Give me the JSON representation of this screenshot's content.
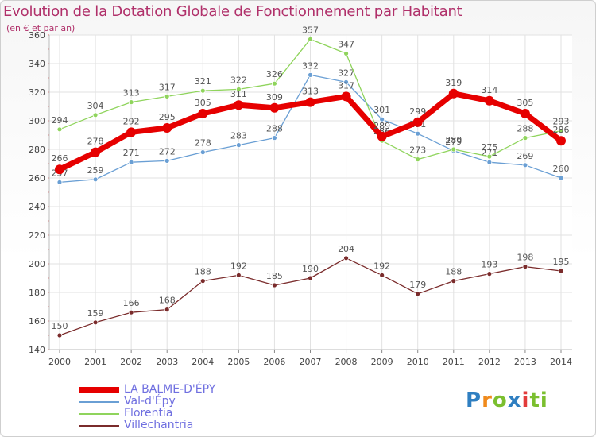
{
  "header": {
    "title": "Evolution de la Dotation Globale de Fonctionnement par Habitant",
    "subtitle": "(en € et par an)"
  },
  "logo": {
    "text": "Proxiti",
    "letters": [
      "P",
      "r",
      "o",
      "x",
      "i",
      "ti"
    ]
  },
  "chart_data": {
    "type": "line",
    "x": [
      "2000",
      "2001",
      "2002",
      "2003",
      "2004",
      "2005",
      "2006",
      "2007",
      "2008",
      "2009",
      "2010",
      "2011",
      "2012",
      "2013",
      "2014"
    ],
    "ylim": [
      140,
      360
    ],
    "yticks": [
      140,
      160,
      180,
      200,
      220,
      240,
      260,
      280,
      300,
      320,
      340,
      360
    ],
    "grid": true,
    "legend_placement": "bottom-left",
    "series": [
      {
        "name": "Val-d'Épy",
        "color": "#6a9fd4",
        "values": [
          257,
          259,
          271,
          272,
          278,
          283,
          288,
          332,
          327,
          301,
          291,
          279,
          271,
          269,
          260
        ]
      },
      {
        "name": "Florentia",
        "color": "#8fd45c",
        "values": [
          294,
          304,
          313,
          317,
          321,
          322,
          326,
          357,
          347,
          286,
          273,
          280,
          275,
          288,
          293
        ]
      },
      {
        "name": "Villechantria",
        "color": "#7a2b2b",
        "values": [
          150,
          159,
          166,
          168,
          188,
          192,
          185,
          190,
          204,
          192,
          179,
          188,
          193,
          198,
          195
        ]
      },
      {
        "name": "LA BALME-D'ÉPY",
        "color": "#e60000",
        "values": [
          266,
          278,
          292,
          295,
          305,
          311,
          309,
          313,
          317,
          289,
          299,
          319,
          314,
          305,
          286
        ]
      }
    ],
    "legend_order": [
      "LA BALME-D'ÉPY",
      "Val-d'Épy",
      "Florentia",
      "Villechantria"
    ]
  }
}
